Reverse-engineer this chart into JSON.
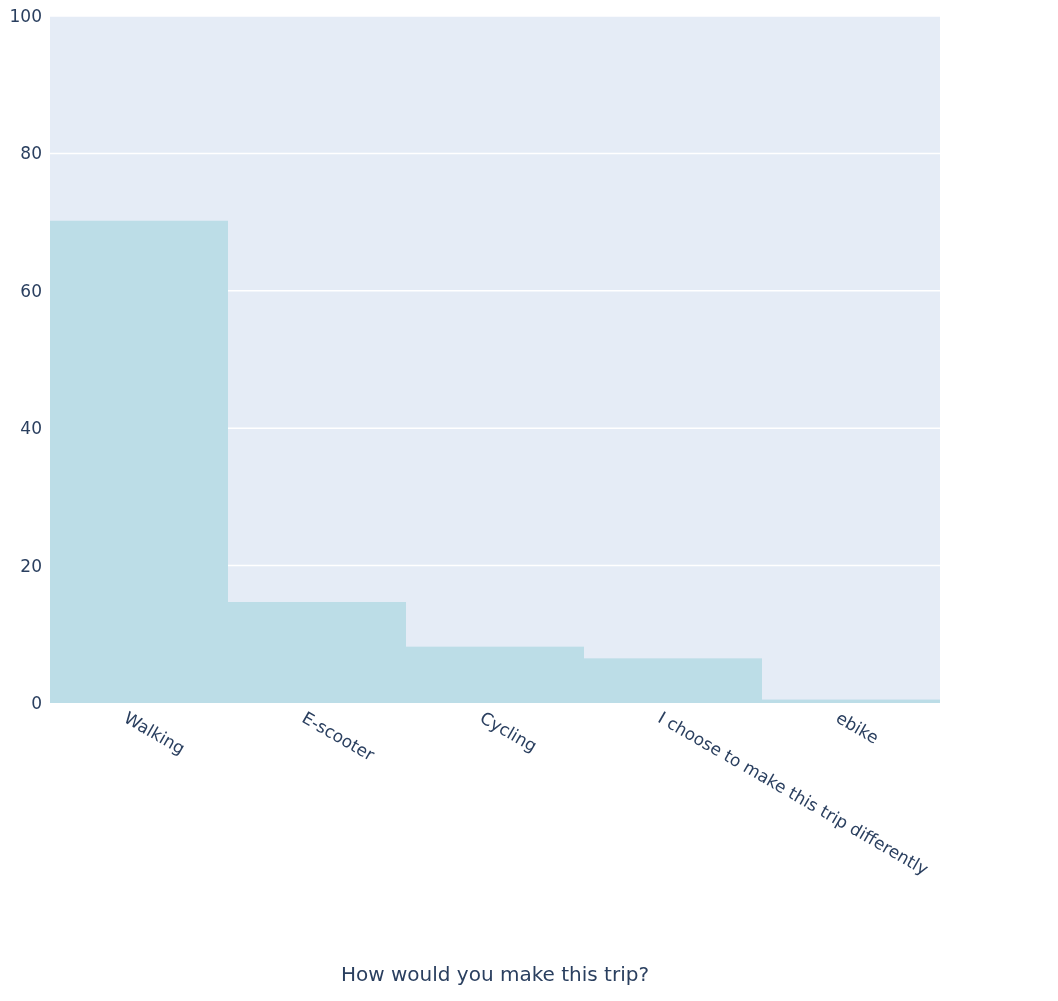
{
  "chart_data": {
    "type": "bar",
    "xlabel": "How would you make this trip?",
    "categories": [
      "Walking",
      "E-scooter",
      "Cycling",
      "I choose to make this trip differently",
      "ebike"
    ],
    "values": [
      70.2,
      14.7,
      8.2,
      6.5,
      0.5
    ],
    "color": "#bcdde7",
    "ylim": [
      0,
      100
    ],
    "yticks": [
      0,
      20,
      40,
      60,
      80,
      100
    ],
    "grid": "y"
  }
}
